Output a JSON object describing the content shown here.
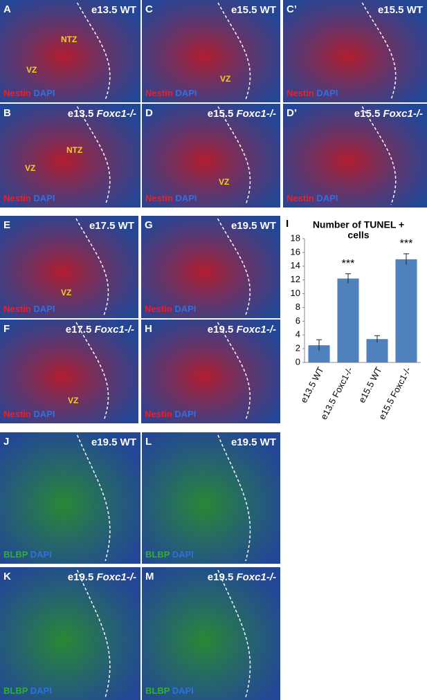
{
  "panels": [
    {
      "letter": "A",
      "stage": "e13.5",
      "genotype": "WT",
      "stain": [
        {
          "text": "Nestin",
          "color": "#e8202a"
        },
        {
          "text": "DAPI",
          "color": "#2f6fe0"
        }
      ],
      "annotations": [
        "NTZ",
        "VZ"
      ]
    },
    {
      "letter": "C",
      "stage": "e15.5",
      "genotype": "WT",
      "stain": [
        {
          "text": "Nestin",
          "color": "#e8202a"
        },
        {
          "text": "DAPI",
          "color": "#2f6fe0"
        }
      ],
      "annotations": [
        "VZ"
      ]
    },
    {
      "letter": "C’",
      "stage": "e15.5",
      "genotype": "WT",
      "stain": [
        {
          "text": "Nestin",
          "color": "#e8202a"
        },
        {
          "text": "DAPI",
          "color": "#2f6fe0"
        }
      ]
    },
    {
      "letter": "B",
      "stage": "e13.5",
      "genotype": "Foxc1-/-",
      "genotype_style": "italic",
      "stain": [
        {
          "text": "Nestin",
          "color": "#e8202a"
        },
        {
          "text": "DAPI",
          "color": "#2f6fe0"
        }
      ],
      "annotations": [
        "NTZ",
        "VZ"
      ]
    },
    {
      "letter": "D",
      "stage": "e15.5",
      "genotype": "Foxc1-/-",
      "genotype_style": "italic",
      "stain": [
        {
          "text": "Nestin",
          "color": "#e8202a"
        },
        {
          "text": "DAPI",
          "color": "#2f6fe0"
        }
      ],
      "annotations": [
        "VZ"
      ]
    },
    {
      "letter": "D’",
      "stage": "e15.5",
      "genotype": "Foxc1-/-",
      "genotype_style": "italic",
      "stain": [
        {
          "text": "Nestin",
          "color": "#e8202a"
        },
        {
          "text": "DAPI",
          "color": "#2f6fe0"
        }
      ]
    },
    {
      "letter": "E",
      "stage": "e17.5",
      "genotype": "WT",
      "stain": [
        {
          "text": "Nestin",
          "color": "#e8202a"
        },
        {
          "text": "DAPI",
          "color": "#2f6fe0"
        }
      ],
      "annotations": [
        "VZ"
      ]
    },
    {
      "letter": "G",
      "stage": "e19.5",
      "genotype": "WT",
      "stain": [
        {
          "text": "Nestin",
          "color": "#e8202a"
        },
        {
          "text": "DAPI",
          "color": "#2f6fe0"
        }
      ]
    },
    {
      "letter": "F",
      "stage": "e17.5",
      "genotype": "Foxc1-/-",
      "genotype_style": "italic",
      "stain": [
        {
          "text": "Nestin",
          "color": "#e8202a"
        },
        {
          "text": "DAPI",
          "color": "#2f6fe0"
        }
      ],
      "annotations": [
        "VZ"
      ]
    },
    {
      "letter": "H",
      "stage": "e19.5",
      "genotype": "Foxc1-/-",
      "genotype_style": "italic",
      "stain": [
        {
          "text": "Nestin",
          "color": "#e8202a"
        },
        {
          "text": "DAPI",
          "color": "#2f6fe0"
        }
      ]
    },
    {
      "letter": "J",
      "stage": "e19.5",
      "genotype": "WT",
      "stain": [
        {
          "text": "BLBP",
          "color": "#2fb030"
        },
        {
          "text": "DAPI",
          "color": "#2f6fe0"
        }
      ]
    },
    {
      "letter": "L",
      "stage": "e19.5",
      "genotype": "WT",
      "stain": [
        {
          "text": "BLBP",
          "color": "#2fb030"
        },
        {
          "text": "DAPI",
          "color": "#2f6fe0"
        }
      ]
    },
    {
      "letter": "K",
      "stage": "e19.5",
      "genotype": "Foxc1-/-",
      "genotype_style": "italic",
      "stain": [
        {
          "text": "BLBP",
          "color": "#2fb030"
        },
        {
          "text": "DAPI",
          "color": "#2f6fe0"
        }
      ]
    },
    {
      "letter": "M",
      "stage": "e19.5",
      "genotype": "Foxc1-/-",
      "genotype_style": "italic",
      "stain": [
        {
          "text": "BLBP",
          "color": "#2fb030"
        },
        {
          "text": "DAPI",
          "color": "#2f6fe0"
        }
      ]
    }
  ],
  "chart_data": {
    "type": "bar",
    "letter": "I",
    "title": [
      "Number of TUNEL +",
      "cells"
    ],
    "categories": [
      "e13.5 WT",
      "e13.5 Foxc1-/-",
      "e15.5 WT",
      "e15.5 Foxc1-/-"
    ],
    "values": [
      2.5,
      12.2,
      3.4,
      15.0
    ],
    "errors": [
      0.8,
      0.7,
      0.5,
      0.8
    ],
    "color": "#4f81bd",
    "annotations": [
      {
        "x": "e13.5 Foxc1-/-",
        "text": "***"
      },
      {
        "x": "e15.5 Foxc1-/-",
        "text": "***"
      }
    ],
    "ylim": [
      0,
      18
    ],
    "yticks": [
      0,
      2,
      4,
      6,
      8,
      10,
      12,
      14,
      16,
      18
    ]
  }
}
